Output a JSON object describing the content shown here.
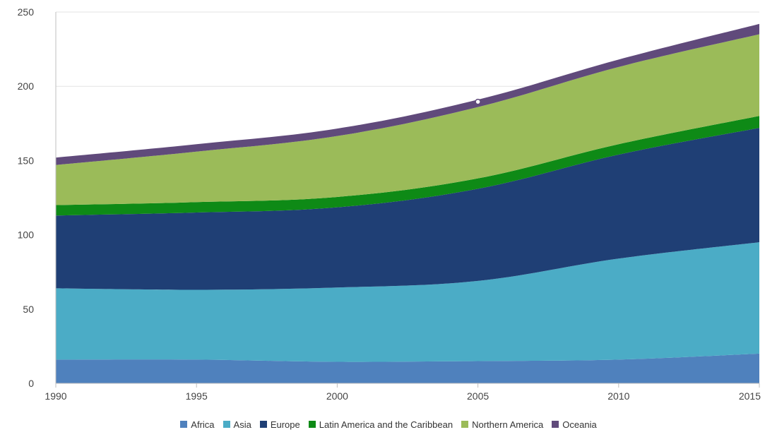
{
  "chart_data": {
    "type": "area",
    "stacked": true,
    "x": [
      1990,
      1995,
      2000,
      2005,
      2010,
      2015
    ],
    "xlim": [
      1990,
      2015
    ],
    "ylim": [
      0,
      250
    ],
    "x_ticks": [
      1990,
      1995,
      2000,
      2005,
      2010,
      2015
    ],
    "y_ticks": [
      0,
      50,
      100,
      150,
      200,
      250
    ],
    "grid": true,
    "legend_position": "bottom",
    "series": [
      {
        "name": "Africa",
        "color": "#4f81bd",
        "values": [
          16,
          16,
          14.5,
          15,
          16,
          20
        ]
      },
      {
        "name": "Asia",
        "color": "#4bacc6",
        "values": [
          48,
          47,
          50,
          54,
          68,
          75
        ]
      },
      {
        "name": "Europe",
        "color": "#1f3f75",
        "values": [
          49,
          52,
          54,
          62,
          70,
          77
        ]
      },
      {
        "name": "Latin America and the Caribbean",
        "color": "#0e8a16",
        "values": [
          7,
          7,
          7,
          7,
          7,
          8
        ]
      },
      {
        "name": "Northern America",
        "color": "#9bbb59",
        "values": [
          27,
          34,
          41,
          48,
          52,
          55
        ]
      },
      {
        "name": "Oceania",
        "color": "#604a7b",
        "values": [
          5,
          5,
          5,
          5,
          5,
          7
        ]
      }
    ]
  }
}
